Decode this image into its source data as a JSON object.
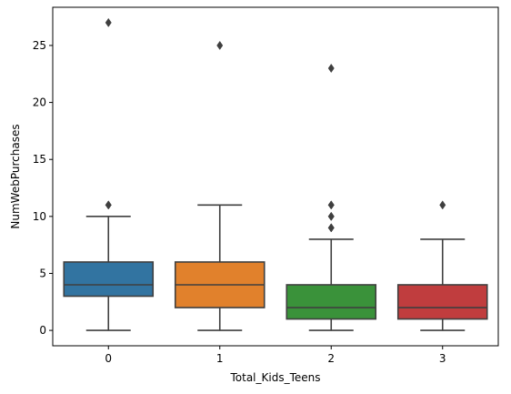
{
  "chart_data": {
    "type": "box",
    "title": "",
    "xlabel": "Total_Kids_Teens",
    "ylabel": "NumWebPurchases",
    "ylim": [
      -1.35,
      28.35
    ],
    "yticks": [
      0,
      5,
      10,
      15,
      20,
      25
    ],
    "ytick_labels": [
      "0",
      "5",
      "10",
      "15",
      "20",
      "25"
    ],
    "categories": [
      "0",
      "1",
      "2",
      "3"
    ],
    "colors": [
      "#3274a1",
      "#e1812c",
      "#3a923a",
      "#c03d3e"
    ],
    "grid": false,
    "legend": "none",
    "boxes": [
      {
        "category": "0",
        "whisker_low": 0,
        "q1": 3,
        "median": 4,
        "q3": 6,
        "whisker_high": 10,
        "outliers": [
          11,
          11,
          27
        ]
      },
      {
        "category": "1",
        "whisker_low": 0,
        "q1": 2,
        "median": 4,
        "q3": 6,
        "whisker_high": 11,
        "outliers": [
          25
        ]
      },
      {
        "category": "2",
        "whisker_low": 0,
        "q1": 1,
        "median": 2,
        "q3": 4,
        "whisker_high": 8,
        "outliers": [
          9,
          9,
          10,
          10,
          11,
          11,
          23
        ]
      },
      {
        "category": "3",
        "whisker_low": 0,
        "q1": 1,
        "median": 2,
        "q3": 4,
        "whisker_high": 8,
        "outliers": [
          11
        ]
      }
    ]
  }
}
